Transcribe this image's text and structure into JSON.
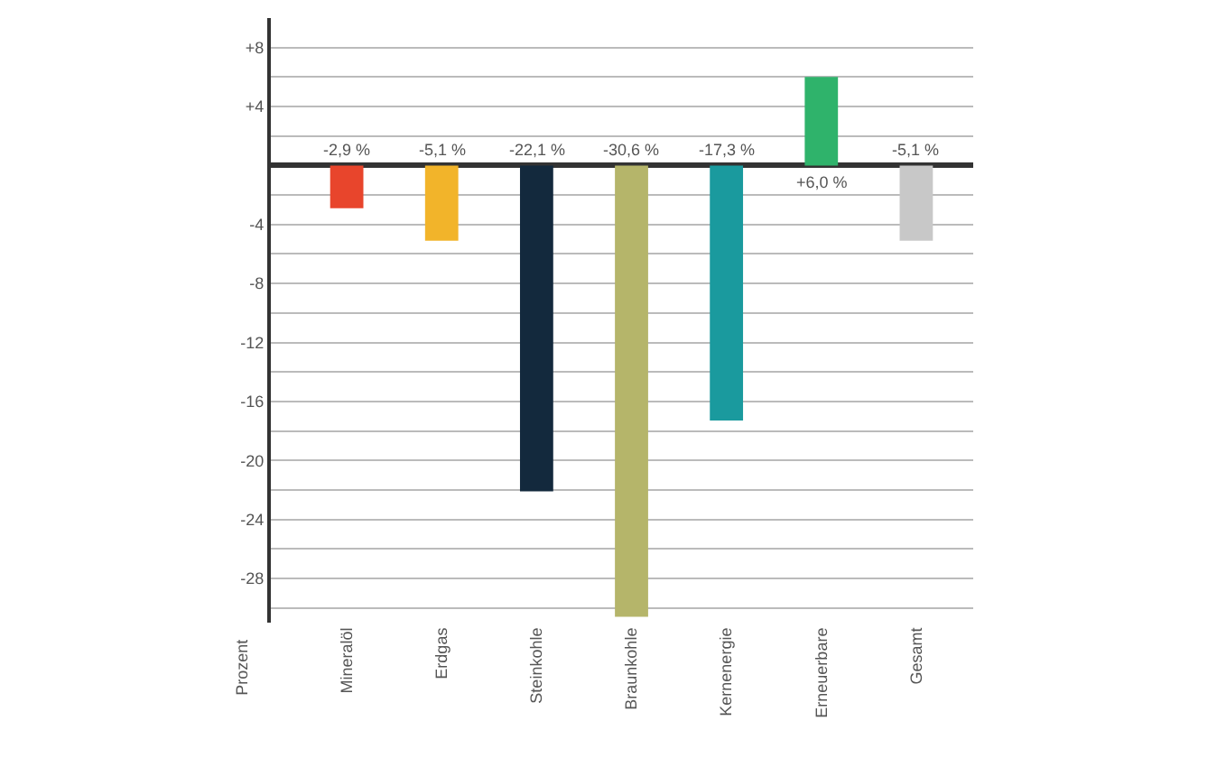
{
  "chart_data": {
    "type": "bar",
    "ylabel": "Prozent",
    "categories": [
      "Mineralöl",
      "Erdgas",
      "Steinkohle",
      "Braunkohle",
      "Kernenergie",
      "Erneuerbare",
      "Gesamt"
    ],
    "values": [
      -2.9,
      -5.1,
      -22.1,
      -30.6,
      -17.3,
      6.0,
      -5.1
    ],
    "value_labels": [
      "-2,9 %",
      "-5,1 %",
      "-22,1 %",
      "-30,6 %",
      "-17,3 %",
      "+6,0 %",
      "-5,1 %"
    ],
    "colors": [
      "#e8452c",
      "#f2b42a",
      "#13293d",
      "#b5b56a",
      "#1a9a9e",
      "#2fb36b",
      "#c8c8c8"
    ],
    "ylim": [
      -31,
      10
    ],
    "yticks": [
      {
        "value": 8,
        "label": "+8"
      },
      {
        "value": 6,
        "label": null
      },
      {
        "value": 4,
        "label": "+4"
      },
      {
        "value": 2,
        "label": null
      },
      {
        "value": -2,
        "label": null
      },
      -4,
      {
        "value": -6,
        "label": null
      },
      -8,
      {
        "value": -10,
        "label": null
      },
      -12,
      {
        "value": -14,
        "label": null
      },
      -16,
      {
        "value": -18,
        "label": null
      },
      -20,
      {
        "value": -22,
        "label": null
      },
      -24,
      {
        "value": -26,
        "label": null
      },
      -28,
      {
        "value": -30,
        "label": null
      }
    ],
    "grid": "y"
  }
}
